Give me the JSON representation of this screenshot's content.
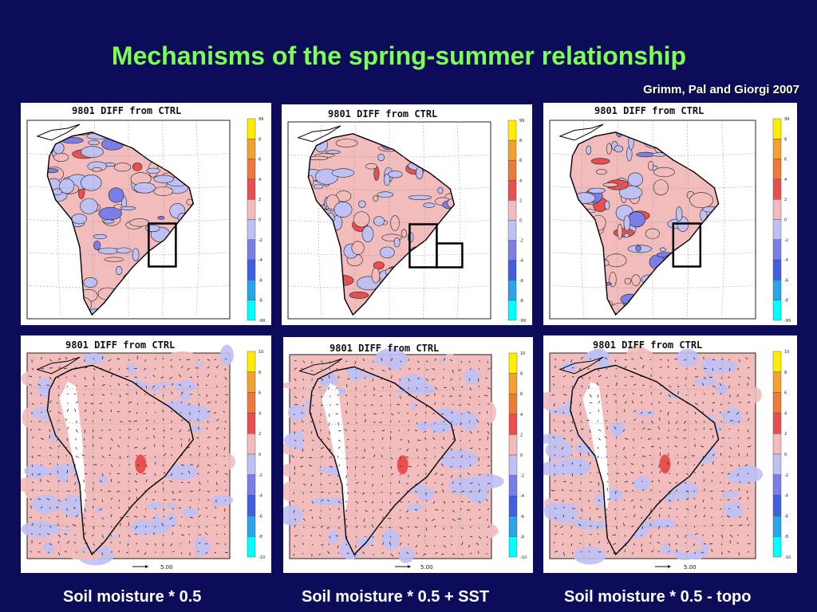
{
  "slide": {
    "title": "Mechanisms of the spring-summer relationship",
    "credit": "Grimm, Pal and Giorgi 2007",
    "colors": {
      "background": "#0c0c5a",
      "title": "#7dff52",
      "positive_scale": [
        "#f2bcbc",
        "#e85050",
        "#ec7a3a",
        "#f4a030",
        "#ffee00"
      ],
      "negative_scale": [
        "#bfc0f4",
        "#7a7ee6",
        "#4060e0",
        "#2aa4e8",
        "#00ffff"
      ]
    }
  },
  "panels": [
    {
      "title": "9801 DIFF from CTRL",
      "colorbar_labels": [
        "99",
        "8",
        "6",
        "4",
        "2",
        "0",
        "-2",
        "-4",
        "-6",
        "-8",
        "-99"
      ]
    },
    {
      "title": "9801 DIFF from CTRL",
      "colorbar_labels": [
        "99",
        "8",
        "6",
        "4",
        "2",
        "0",
        "-2",
        "-4",
        "-6",
        "-8",
        "-99"
      ]
    },
    {
      "title": "9801 DIFF from CTRL",
      "colorbar_labels": [
        "99",
        "8",
        "6",
        "4",
        "2",
        "0",
        "-2",
        "-4",
        "-6",
        "-8",
        "-99"
      ]
    },
    {
      "title": "9801 DIFF from CTRL",
      "colorbar_labels": [
        "10",
        "8",
        "6",
        "4",
        "2",
        "0",
        "-2",
        "-4",
        "-6",
        "-8",
        "-10"
      ],
      "vector_scale": "5.00"
    },
    {
      "title": "9801 DIFF from CTRL",
      "colorbar_labels": [
        "10",
        "8",
        "6",
        "4",
        "2",
        "0",
        "-2",
        "-4",
        "-6",
        "-8",
        "-10"
      ],
      "vector_scale": "5.00"
    },
    {
      "title": "9801 DIFF from CTRL",
      "colorbar_labels": [
        "10",
        "8",
        "6",
        "4",
        "2",
        "0",
        "-2",
        "-4",
        "-6",
        "-8",
        "-10"
      ],
      "vector_scale": "5.00"
    }
  ],
  "captions": [
    "Soil moisture * 0.5",
    "Soil moisture * 0.5 + SST",
    "Soil moisture * 0.5 - topo"
  ]
}
